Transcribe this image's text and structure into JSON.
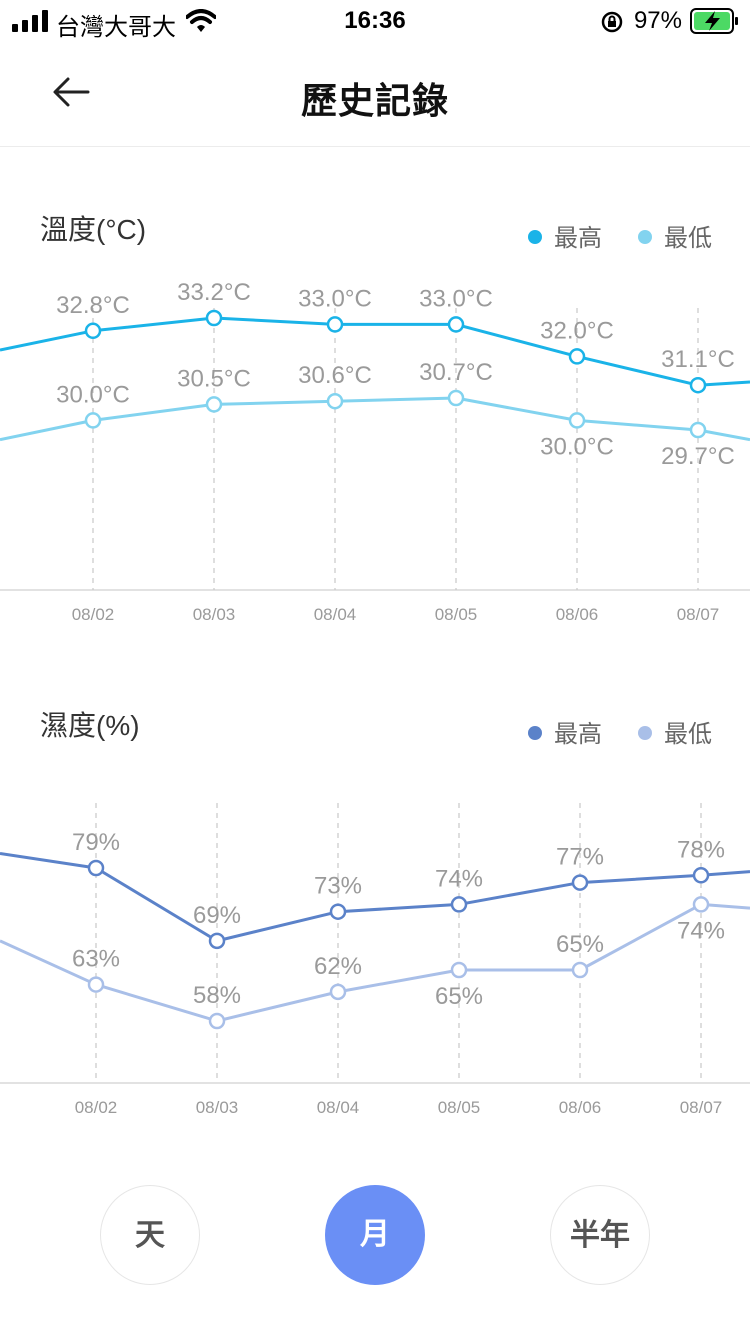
{
  "status_bar": {
    "carrier": "台灣大哥大",
    "time": "16:36",
    "battery": "97%",
    "icons": [
      "signal-icon",
      "wifi-icon",
      "orientation-lock-icon",
      "battery-charging-icon"
    ]
  },
  "header": {
    "title": "歷史記錄",
    "back_icon": "back-arrow-icon"
  },
  "temperature": {
    "title": "溫度(°C)",
    "legend": {
      "high": "最高",
      "low": "最低"
    },
    "colors": {
      "high": "#1ab3e8",
      "low": "#82d3ef"
    }
  },
  "humidity": {
    "title": "濕度(%)",
    "legend": {
      "high": "最高",
      "low": "最低"
    },
    "colors": {
      "high": "#5b82c9",
      "low": "#a9bfe8"
    }
  },
  "range_selector": {
    "day": "天",
    "month": "月",
    "half_year": "半年",
    "selected": "月"
  },
  "chart_data": [
    {
      "type": "line",
      "title": "溫度(°C)",
      "categories": [
        "08/02",
        "08/03",
        "08/04",
        "08/05",
        "08/06",
        "08/07"
      ],
      "series": [
        {
          "name": "最高",
          "values": [
            32.8,
            33.2,
            33.0,
            33.0,
            32.0,
            31.1
          ],
          "labels": [
            "32.8°C",
            "33.2°C",
            "33.0°C",
            "33.0°C",
            "32.0°C",
            "31.1°C"
          ]
        },
        {
          "name": "最低",
          "values": [
            30.0,
            30.5,
            30.6,
            30.7,
            30.0,
            29.7
          ],
          "labels": [
            "30.0°C",
            "30.5°C",
            "30.6°C",
            "30.7°C",
            "30.0°C",
            "29.7°C"
          ]
        }
      ],
      "legend": "top-right",
      "grid": "vertical-dashed"
    },
    {
      "type": "line",
      "title": "濕度(%)",
      "categories": [
        "08/02",
        "08/03",
        "08/04",
        "08/05",
        "08/06",
        "08/07"
      ],
      "series": [
        {
          "name": "最高",
          "values": [
            79,
            69,
            73,
            74,
            77,
            78
          ],
          "labels": [
            "79%",
            "69%",
            "73%",
            "74%",
            "77%",
            "78%"
          ]
        },
        {
          "name": "最低",
          "values": [
            63,
            58,
            62,
            65,
            65,
            74
          ],
          "labels": [
            "63%",
            "58%",
            "62%",
            "65%",
            "65%",
            "74%"
          ]
        }
      ],
      "legend": "top-right",
      "grid": "vertical-dashed"
    }
  ]
}
